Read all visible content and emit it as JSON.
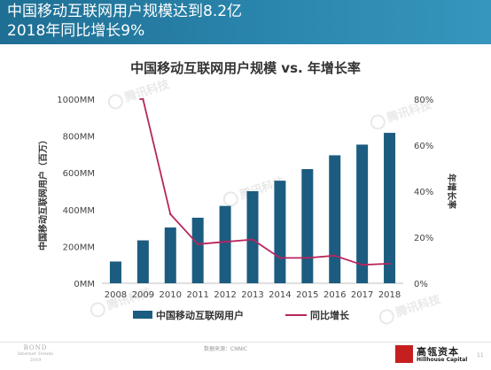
{
  "header": {
    "line1": "中国移动互联网用户规模达到8.2亿",
    "line2": "2018年同比增长9%",
    "background_color": "#2a86ad"
  },
  "chart_data": {
    "type": "bar",
    "title": "中国移动互联网用户规模 vs. 年增长率",
    "categories": [
      "2008",
      "2009",
      "2010",
      "2011",
      "2012",
      "2013",
      "2014",
      "2015",
      "2016",
      "2017",
      "2018"
    ],
    "ylabel": "中国移动互联网用户（百万）",
    "ylim": [
      0,
      1000
    ],
    "y_ticks": [
      "0MM",
      "200MM",
      "400MM",
      "600MM",
      "800MM",
      "1000MM"
    ],
    "y2label": "年增长率",
    "y2lim": [
      0,
      80
    ],
    "y2_ticks": [
      "0%",
      "20%",
      "40%",
      "60%",
      "80%"
    ],
    "grid": false,
    "legend_position": "bottom",
    "series": [
      {
        "name": "中国移动互联网用户",
        "type": "bar",
        "axis": "left",
        "color": "#1c5c80",
        "values": [
          118,
          233,
          303,
          356,
          420,
          500,
          557,
          620,
          695,
          753,
          817
        ]
      },
      {
        "name": "同比增长",
        "type": "line",
        "axis": "right",
        "color": "#b8265d",
        "start_value": 80,
        "values": [
          null,
          80,
          30,
          17,
          18,
          19,
          11,
          11,
          12,
          8,
          8.5
        ]
      }
    ]
  },
  "watermark": {
    "text": "腾讯科技"
  },
  "footer": {
    "left_title": "BOND",
    "left_sub1": "Internet Trends",
    "left_sub2": "2019",
    "source": "数据来源：CNNIC",
    "logo_cn": "高瓴资本",
    "logo_en": "Hillhouse Capital",
    "logo_color": "#c61f1f",
    "page_number": "11"
  }
}
